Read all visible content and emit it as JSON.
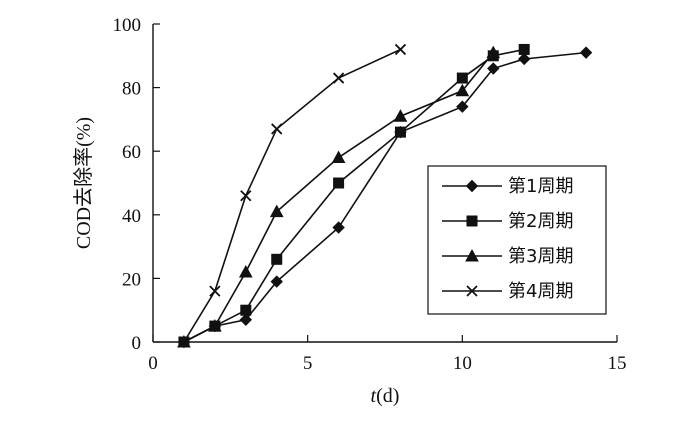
{
  "chart_data": {
    "type": "line",
    "xlabel_italic": "t",
    "xlabel_rest": "(d)",
    "ylabel": "COD去除率(%)",
    "xlim": [
      0,
      15
    ],
    "ylim": [
      0,
      100
    ],
    "xticks": [
      0,
      5,
      10,
      15
    ],
    "yticks": [
      0,
      20,
      40,
      60,
      80,
      100
    ],
    "legend_position": "center-right",
    "grid": false,
    "series": [
      {
        "name": "第1周期",
        "marker": "diamond",
        "x": [
          1,
          2,
          3,
          4,
          6,
          8,
          10,
          11,
          12,
          14
        ],
        "y": [
          0,
          5,
          7,
          19,
          36,
          66,
          74,
          86,
          89,
          91
        ]
      },
      {
        "name": "第2周期",
        "marker": "square",
        "x": [
          1,
          2,
          3,
          4,
          6,
          8,
          10,
          11,
          12
        ],
        "y": [
          0,
          5,
          10,
          26,
          50,
          66,
          83,
          90,
          92
        ]
      },
      {
        "name": "第3周期",
        "marker": "triangle",
        "x": [
          1,
          2,
          3,
          4,
          6,
          8,
          10,
          11
        ],
        "y": [
          0,
          5,
          22,
          41,
          58,
          71,
          79,
          91
        ]
      },
      {
        "name": "第4周期",
        "marker": "x",
        "x": [
          1,
          2,
          3,
          4,
          6,
          8
        ],
        "y": [
          0,
          16,
          46,
          67,
          83,
          92
        ]
      }
    ]
  }
}
